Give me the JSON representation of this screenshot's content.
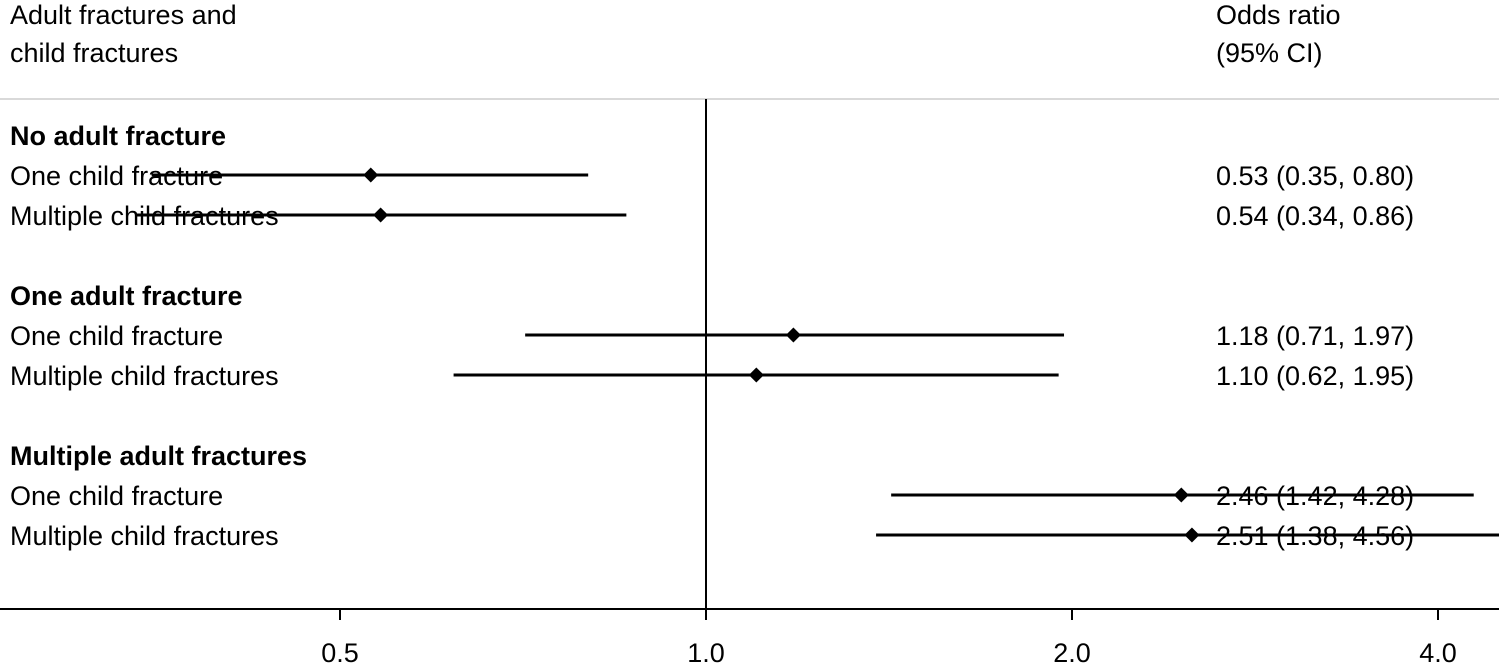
{
  "chart_data": {
    "type": "forest",
    "header": {
      "left_line1": "Adult fractures and",
      "left_line2": "child fractures",
      "right_line1": "Odds ratio",
      "right_line2": "(95% CI)"
    },
    "x_scale": "log",
    "reference_line": 1.0,
    "xlim": [
      0.315,
      8.5
    ],
    "x_ticks": [
      {
        "value": 0.5,
        "label": "0.5"
      },
      {
        "value": 1.0,
        "label": "1.0"
      },
      {
        "value": 2.0,
        "label": "2.0"
      },
      {
        "value": 4.0,
        "label": "4.0"
      }
    ],
    "groups": [
      {
        "name": "No adult fracture",
        "rows": [
          {
            "label": "One child fracture",
            "or": 0.53,
            "lo": 0.35,
            "hi": 0.8,
            "text": "0.53 (0.35, 0.80)"
          },
          {
            "label": "Multiple child fractures",
            "or": 0.54,
            "lo": 0.34,
            "hi": 0.86,
            "text": "0.54 (0.34, 0.86)"
          }
        ]
      },
      {
        "name": "One adult fracture",
        "rows": [
          {
            "label": "One child fracture",
            "or": 1.18,
            "lo": 0.71,
            "hi": 1.97,
            "text": "1.18 (0.71, 1.97)"
          },
          {
            "label": "Multiple child fractures",
            "or": 1.1,
            "lo": 0.62,
            "hi": 1.95,
            "text": "1.10 (0.62, 1.95)"
          }
        ]
      },
      {
        "name": "Multiple adult fractures",
        "rows": [
          {
            "label": "One child fracture",
            "or": 2.46,
            "lo": 1.42,
            "hi": 4.28,
            "text": "2.46 (1.42, 4.28)"
          },
          {
            "label": "Multiple child fractures",
            "or": 2.51,
            "lo": 1.38,
            "hi": 4.56,
            "text": "2.51 (1.38, 4.56)"
          }
        ]
      }
    ]
  }
}
